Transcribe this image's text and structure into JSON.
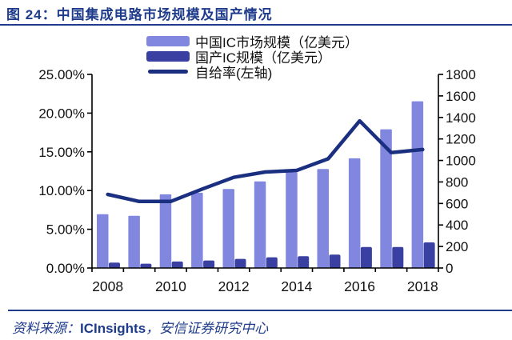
{
  "header": {
    "prefix": "图 24：",
    "title": "中国集成电路市场规模及国产情况"
  },
  "footer": {
    "label": "资料来源：",
    "source1": "ICInsights",
    "separator": "，",
    "source2": "安信证券研究中心"
  },
  "colors": {
    "accent_navy": "#1F3C8C",
    "market_bar": "#8186DE",
    "domestic_bar": "#3A40A1",
    "rate_line": "#1B2F80",
    "axis_text": "#111111",
    "axis_line": "#000000"
  },
  "chart_data": {
    "type": "combo-bar-line",
    "categories": [
      "2008",
      "2009",
      "2010",
      "2011",
      "2012",
      "2013",
      "2014",
      "2015",
      "2016",
      "2017",
      "2018"
    ],
    "series": [
      {
        "name": "中国IC市场规模（亿美元）",
        "type": "bar",
        "axis": "right",
        "color": "#8186DE",
        "values": [
          500,
          485,
          685,
          700,
          735,
          805,
          890,
          920,
          1020,
          1290,
          1550
        ]
      },
      {
        "name": "国产IC规模（亿美元）",
        "type": "bar",
        "axis": "right",
        "color": "#3A40A1",
        "values": [
          50,
          40,
          60,
          70,
          85,
          100,
          110,
          125,
          195,
          195,
          238
        ]
      },
      {
        "name": "自给率(左轴)",
        "type": "line",
        "axis": "left",
        "unit": "%",
        "color": "#1B2F80",
        "values": [
          9.5,
          8.6,
          8.6,
          10.2,
          11.7,
          12.4,
          12.6,
          14.1,
          19.0,
          14.9,
          15.3
        ]
      }
    ],
    "left_axis": {
      "min": 0,
      "max": 25,
      "step": 5,
      "tick_labels": [
        "25.00%",
        "20.00%",
        "15.00%",
        "10.00%",
        "5.00%",
        "0.00%"
      ]
    },
    "right_axis": {
      "min": 0,
      "max": 1800,
      "step": 200,
      "tick_labels": [
        "1800",
        "1600",
        "1400",
        "1200",
        "1000",
        "800",
        "600",
        "400",
        "200",
        "0"
      ]
    },
    "x_axis": {
      "visible_labels": [
        "2008",
        "2010",
        "2012",
        "2014",
        "2016",
        "2018"
      ],
      "label_indices": [
        0,
        2,
        4,
        6,
        8,
        10
      ]
    },
    "grid": "off",
    "legend_position": "top-center"
  }
}
